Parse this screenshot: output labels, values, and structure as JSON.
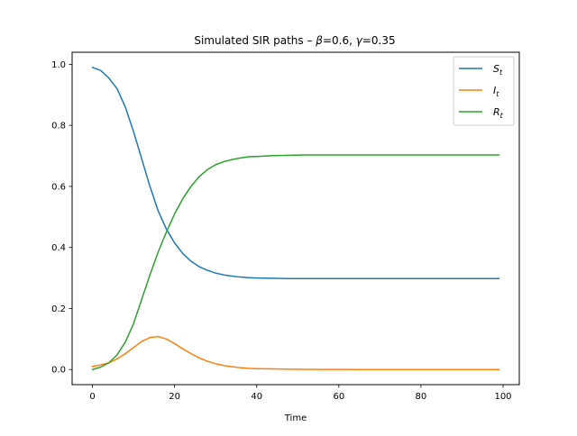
{
  "chart_data": {
    "type": "line",
    "title": {
      "prefix": "Simulated SIR paths – ",
      "beta_symbol": "β",
      "beta_value": "=0.6, ",
      "gamma_symbol": "γ",
      "gamma_value": "=0.35"
    },
    "xlabel": "Time",
    "ylabel": "",
    "xlim": [
      -4.95,
      103.95
    ],
    "ylim": [
      -0.0495,
      1.0395
    ],
    "xticks": [
      0,
      20,
      40,
      60,
      80,
      100
    ],
    "xtick_labels": [
      "0",
      "20",
      "40",
      "60",
      "80",
      "100"
    ],
    "yticks": [
      0.0,
      0.2,
      0.4,
      0.6,
      0.8,
      1.0
    ],
    "ytick_labels": [
      "0.0",
      "0.2",
      "0.4",
      "0.6",
      "0.8",
      "1.0"
    ],
    "grid": false,
    "legend_position": "top-right",
    "x": [
      0,
      2,
      4,
      6,
      8,
      10,
      12,
      14,
      16,
      18,
      20,
      22,
      24,
      26,
      28,
      30,
      32,
      34,
      36,
      38,
      40,
      44,
      48,
      52,
      56,
      60,
      64,
      68,
      72,
      76,
      80,
      84,
      88,
      92,
      96,
      99
    ],
    "series": [
      {
        "name": "S",
        "name_sub": "t",
        "color": "#1f77b4",
        "values": [
          0.99,
          0.98,
          0.955,
          0.92,
          0.86,
          0.78,
          0.69,
          0.6,
          0.52,
          0.46,
          0.415,
          0.38,
          0.355,
          0.337,
          0.325,
          0.316,
          0.31,
          0.306,
          0.303,
          0.301,
          0.3,
          0.299,
          0.298,
          0.298,
          0.298,
          0.298,
          0.298,
          0.298,
          0.298,
          0.298,
          0.298,
          0.298,
          0.298,
          0.298,
          0.298,
          0.298
        ]
      },
      {
        "name": "I",
        "name_sub": "t",
        "color": "#ff7f0e",
        "values": [
          0.01,
          0.015,
          0.022,
          0.035,
          0.052,
          0.072,
          0.092,
          0.105,
          0.108,
          0.1,
          0.085,
          0.068,
          0.052,
          0.038,
          0.027,
          0.019,
          0.013,
          0.009,
          0.006,
          0.004,
          0.003,
          0.002,
          0.001,
          0.0005,
          0.0003,
          0.0002,
          0.0001,
          0.0,
          0.0,
          0.0,
          0.0,
          0.0,
          0.0,
          0.0,
          0.0,
          0.0
        ]
      },
      {
        "name": "R",
        "name_sub": "t",
        "color": "#2ca02c",
        "values": [
          0.0,
          0.008,
          0.022,
          0.048,
          0.09,
          0.15,
          0.23,
          0.31,
          0.385,
          0.45,
          0.51,
          0.56,
          0.6,
          0.632,
          0.655,
          0.671,
          0.681,
          0.688,
          0.693,
          0.697,
          0.698,
          0.701,
          0.702,
          0.703,
          0.703,
          0.703,
          0.703,
          0.703,
          0.703,
          0.703,
          0.703,
          0.703,
          0.703,
          0.703,
          0.703,
          0.703
        ]
      }
    ]
  }
}
